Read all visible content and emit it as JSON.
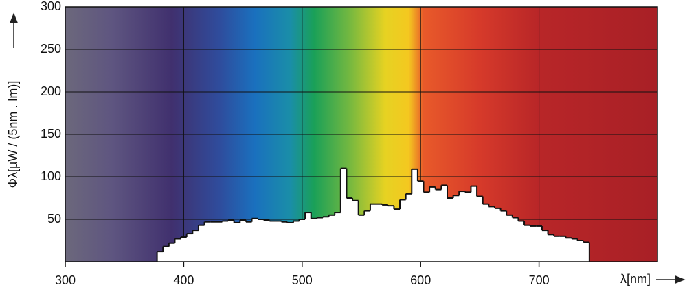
{
  "chart_data": {
    "type": "histogram",
    "y_label": "Φλ[µW / (5nm . lm)]",
    "x_label": "λ[nm]",
    "bins": [
      377.5,
      382.5,
      387.5,
      392.5,
      397.5,
      402.5,
      407.5,
      412.5,
      417.5,
      422.5,
      427.5,
      432.5,
      437.5,
      442.5,
      447.5,
      452.5,
      457.5,
      462.5,
      467.5,
      472.5,
      477.5,
      482.5,
      487.5,
      492.5,
      497.5,
      502.5,
      507.5,
      512.5,
      517.5,
      522.5,
      527.5,
      532.5,
      537.5,
      542.5,
      547.5,
      552.5,
      557.5,
      562.5,
      567.5,
      572.5,
      577.5,
      582.5,
      587.5,
      592.5,
      597.5,
      602.5,
      607.5,
      612.5,
      617.5,
      622.5,
      627.5,
      632.5,
      637.5,
      642.5,
      647.5,
      652.5,
      657.5,
      662.5,
      667.5,
      672.5,
      677.5,
      682.5,
      687.5,
      692.5,
      697.5,
      702.5,
      707.5,
      712.5,
      717.5,
      722.5,
      727.5,
      732.5,
      737.5,
      742.5
    ],
    "values": [
      12,
      18,
      22,
      27,
      29,
      33,
      37,
      43,
      47,
      47,
      47,
      48,
      49,
      46,
      49,
      47,
      51,
      50,
      49,
      48,
      48,
      47,
      46,
      48,
      50,
      58,
      51,
      52,
      53,
      55,
      58,
      110,
      75,
      72,
      55,
      60,
      68,
      68,
      67,
      66,
      62,
      73,
      80,
      109,
      95,
      82,
      88,
      85,
      90,
      75,
      78,
      83,
      82,
      89,
      77,
      68,
      65,
      63,
      60,
      55,
      52,
      48,
      43,
      42,
      42,
      37,
      32,
      30,
      30,
      28,
      27,
      25,
      23
    ],
    "color": "#ffffff",
    "xlim": [
      300,
      800
    ],
    "xticks": [
      300,
      400,
      500,
      600,
      700
    ],
    "ylim": [
      0,
      300
    ],
    "yticks": [
      50,
      100,
      150,
      200,
      250,
      300
    ],
    "grid": true
  }
}
